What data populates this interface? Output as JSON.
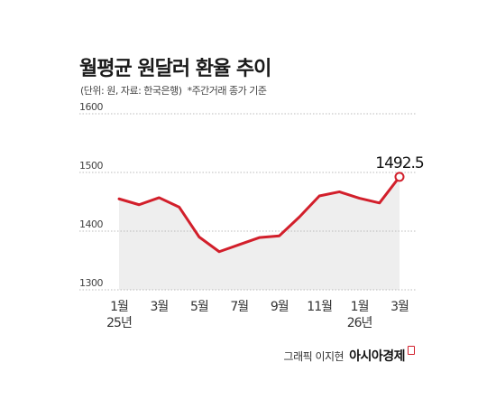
{
  "title": "월평균 원달러 환율 추이",
  "subtitle": "(단위: 원, 자료: 한국은행)",
  "note": "*주간거래 종가 기준",
  "credit": "그래픽 이지현",
  "brand": "아시아경제",
  "colors": {
    "line": "#d21f2b",
    "area": "#eeeeee",
    "grid": "#bbbbbb"
  },
  "chart_data": {
    "type": "area",
    "title": "월평균 원달러 환율 추이",
    "ylim": [
      1300,
      1600
    ],
    "yticks": [
      1300,
      1400,
      1500,
      1600
    ],
    "x_ticks": [
      {
        "index": 0,
        "label": "1월",
        "year": "25년"
      },
      {
        "index": 2,
        "label": "3월",
        "year": ""
      },
      {
        "index": 4,
        "label": "5월",
        "year": ""
      },
      {
        "index": 6,
        "label": "7월",
        "year": ""
      },
      {
        "index": 8,
        "label": "9월",
        "year": ""
      },
      {
        "index": 10,
        "label": "11월",
        "year": ""
      },
      {
        "index": 12,
        "label": "1월",
        "year": "26년"
      },
      {
        "index": 14,
        "label": "3월",
        "year": ""
      }
    ],
    "series": [
      {
        "values": [
          1455,
          1445,
          1457,
          1441,
          1390,
          1365,
          1377,
          1389,
          1392,
          1424,
          1460,
          1467,
          1456,
          1448,
          1492.5
        ]
      }
    ],
    "highlight": {
      "index": 14,
      "label": "1492.5"
    },
    "grid": true
  }
}
